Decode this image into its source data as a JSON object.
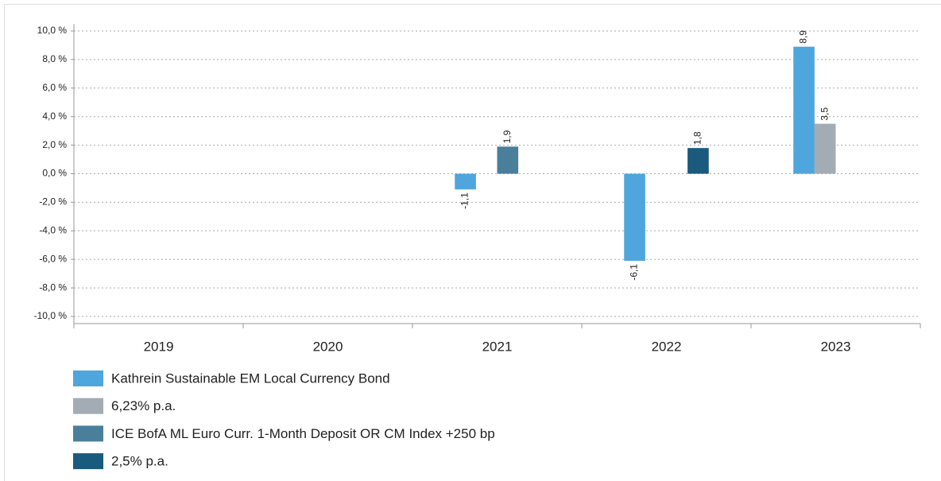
{
  "chart_data": {
    "type": "bar",
    "categories": [
      "2019",
      "2020",
      "2021",
      "2022",
      "2023"
    ],
    "series": [
      {
        "name": "Kathrein Sustainable EM Local Currency Bond",
        "color": "#4ea6dc",
        "values": [
          null,
          null,
          -1.1,
          -6.1,
          8.9
        ],
        "value_labels": [
          null,
          null,
          "-1,1",
          "-6,1",
          "8,9"
        ]
      },
      {
        "name": "6,23% p.a.",
        "color": "#a3acb5",
        "values": [
          null,
          null,
          null,
          null,
          3.5
        ],
        "value_labels": [
          null,
          null,
          null,
          null,
          "3,5"
        ]
      },
      {
        "name": "ICE BofA ML Euro Curr. 1-Month Deposit OR CM Index +250 bp",
        "color": "#4a7f9b",
        "values": [
          null,
          null,
          1.9,
          null,
          null
        ],
        "value_labels": [
          null,
          null,
          "1,9",
          null,
          null
        ]
      },
      {
        "name": "2,5% p.a.",
        "color": "#1a5a7c",
        "values": [
          null,
          null,
          null,
          1.8,
          null
        ],
        "value_labels": [
          null,
          null,
          null,
          "1,8",
          null
        ]
      }
    ],
    "ylim": [
      -10.5,
      10.5
    ],
    "yticks": [
      {
        "value": 10,
        "label": "10,0 %"
      },
      {
        "value": 8,
        "label": "8,0 %"
      },
      {
        "value": 6,
        "label": "6,0 %"
      },
      {
        "value": 4,
        "label": "4,0 %"
      },
      {
        "value": 2,
        "label": "2,0 %"
      },
      {
        "value": 0,
        "label": "0,0 %"
      },
      {
        "value": -2,
        "label": "-2,0 %"
      },
      {
        "value": -4,
        "label": "-4,0 %"
      },
      {
        "value": -6,
        "label": "-6,0 %"
      },
      {
        "value": -8,
        "label": "-8,0 %"
      },
      {
        "value": -10,
        "label": "-10,0 %"
      }
    ],
    "grid": true
  }
}
